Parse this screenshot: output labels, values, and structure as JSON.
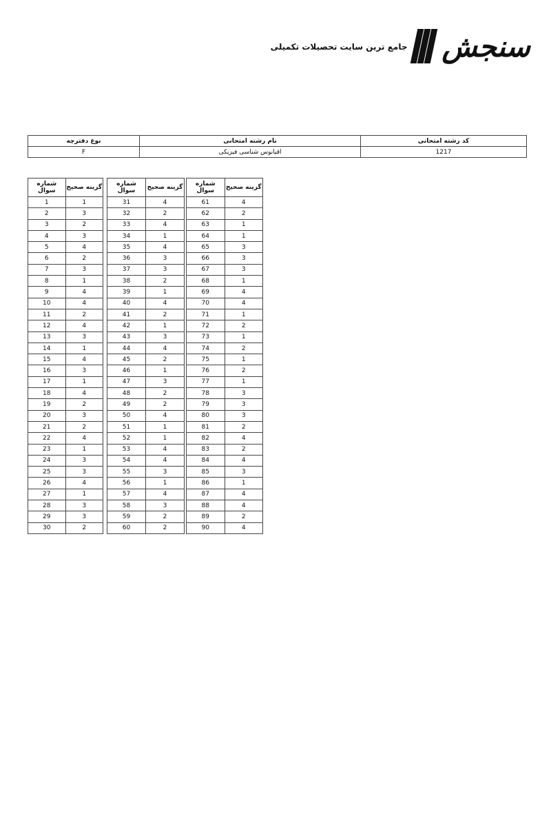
{
  "logo": {
    "name": "سنجش",
    "tagline": "جامع ترین سایت تحصیلات تکمیلی"
  },
  "header_table": {
    "columns": [
      "کد رشته امتحانی",
      "نام رشته امتحانی",
      "نوع دفترچه"
    ],
    "values": [
      "1217",
      "اقیانوس شناسی فیزیکی",
      "F"
    ]
  },
  "answer_key": {
    "col_question": "شماره سوال",
    "col_answer": "گزینه صحیح",
    "groups": [
      {
        "questions": [
          1,
          2,
          3,
          4,
          5,
          6,
          7,
          8,
          9,
          10,
          11,
          12,
          13,
          14,
          15,
          16,
          17,
          18,
          19,
          20,
          21,
          22,
          23,
          24,
          25,
          26,
          27,
          28,
          29,
          30
        ],
        "answers": [
          1,
          3,
          2,
          3,
          4,
          2,
          3,
          1,
          4,
          4,
          2,
          4,
          3,
          1,
          4,
          3,
          1,
          4,
          2,
          3,
          2,
          4,
          1,
          3,
          3,
          4,
          1,
          3,
          3,
          2
        ]
      },
      {
        "questions": [
          31,
          32,
          33,
          34,
          35,
          36,
          37,
          38,
          39,
          40,
          41,
          42,
          43,
          44,
          45,
          46,
          47,
          48,
          49,
          50,
          51,
          52,
          53,
          54,
          55,
          56,
          57,
          58,
          59,
          60
        ],
        "answers": [
          4,
          2,
          4,
          1,
          4,
          3,
          3,
          2,
          1,
          4,
          2,
          1,
          3,
          4,
          2,
          1,
          3,
          2,
          2,
          4,
          1,
          1,
          4,
          4,
          3,
          1,
          4,
          3,
          2,
          2
        ]
      },
      {
        "questions": [
          61,
          62,
          63,
          64,
          65,
          66,
          67,
          68,
          69,
          70,
          71,
          72,
          73,
          74,
          75,
          76,
          77,
          78,
          79,
          80,
          81,
          82,
          83,
          84,
          85,
          86,
          87,
          88,
          89,
          90
        ],
        "answers": [
          4,
          2,
          1,
          1,
          3,
          3,
          3,
          1,
          4,
          4,
          1,
          2,
          1,
          2,
          1,
          2,
          1,
          3,
          3,
          3,
          2,
          4,
          2,
          4,
          3,
          1,
          4,
          4,
          2,
          4
        ]
      }
    ]
  }
}
